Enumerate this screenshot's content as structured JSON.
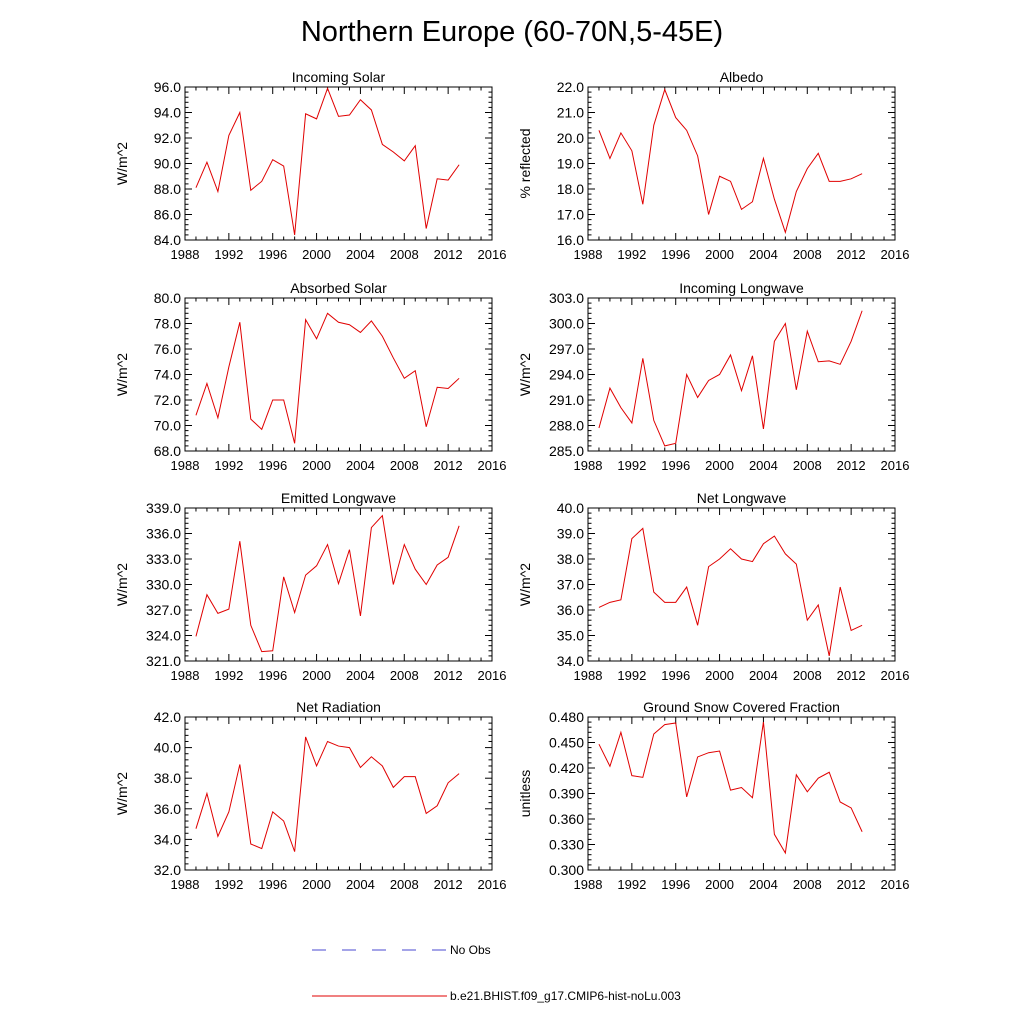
{
  "figure": {
    "title": "Northern Europe (60-70N,5-45E)",
    "x_ticks": [
      "1988",
      "1992",
      "1996",
      "2000",
      "2004",
      "2008",
      "2012",
      "2016"
    ],
    "line_color": "#e00000",
    "obs_color": "#4a4ad0"
  },
  "legend": {
    "obs_label": "No Obs",
    "model_label": "b.e21.BHIST.f09_g17.CMIP6-hist-noLu.003"
  },
  "chart_data": [
    {
      "type": "line",
      "title": "Incoming Solar",
      "ylabel": "W/m^2",
      "xlim": [
        1988,
        2016
      ],
      "ylim": [
        84.0,
        96.0
      ],
      "yticks": [
        "84.0",
        "86.0",
        "88.0",
        "90.0",
        "92.0",
        "94.0",
        "96.0"
      ],
      "x": [
        1989,
        1990,
        1991,
        1992,
        1993,
        1994,
        1995,
        1996,
        1997,
        1998,
        1999,
        2000,
        2001,
        2002,
        2003,
        2004,
        2005,
        2006,
        2007,
        2008,
        2009,
        2010,
        2011,
        2012,
        2013
      ],
      "series": [
        {
          "name": "b.e21.BHIST.f09_g17.CMIP6-hist-noLu.003",
          "values": [
            88.1,
            90.1,
            87.8,
            92.2,
            94.0,
            87.9,
            88.6,
            90.3,
            89.8,
            84.4,
            93.9,
            93.5,
            95.9,
            93.7,
            93.8,
            95.0,
            94.2,
            91.5,
            90.9,
            90.2,
            91.4,
            84.9,
            88.8,
            88.7,
            89.9
          ]
        }
      ]
    },
    {
      "type": "line",
      "title": "Albedo",
      "ylabel": "% reflected",
      "xlim": [
        1988,
        2016
      ],
      "ylim": [
        16.0,
        22.0
      ],
      "yticks": [
        "16.0",
        "17.0",
        "18.0",
        "19.0",
        "20.0",
        "21.0",
        "22.0"
      ],
      "x": [
        1989,
        1990,
        1991,
        1992,
        1993,
        1994,
        1995,
        1996,
        1997,
        1998,
        1999,
        2000,
        2001,
        2002,
        2003,
        2004,
        2005,
        2006,
        2007,
        2008,
        2009,
        2010,
        2011,
        2012,
        2013
      ],
      "series": [
        {
          "name": "b.e21.BHIST.f09_g17.CMIP6-hist-noLu.003",
          "values": [
            20.3,
            19.2,
            20.2,
            19.5,
            17.4,
            20.5,
            21.9,
            20.8,
            20.3,
            19.3,
            17.0,
            18.5,
            18.3,
            17.2,
            17.5,
            19.2,
            17.6,
            16.3,
            17.9,
            18.8,
            19.4,
            18.3,
            18.3,
            18.4,
            18.6
          ]
        }
      ]
    },
    {
      "type": "line",
      "title": "Absorbed Solar",
      "ylabel": "W/m^2",
      "xlim": [
        1988,
        2016
      ],
      "ylim": [
        68.0,
        80.0
      ],
      "yticks": [
        "68.0",
        "70.0",
        "72.0",
        "74.0",
        "76.0",
        "78.0",
        "80.0"
      ],
      "x": [
        1989,
        1990,
        1991,
        1992,
        1993,
        1994,
        1995,
        1996,
        1997,
        1998,
        1999,
        2000,
        2001,
        2002,
        2003,
        2004,
        2005,
        2006,
        2007,
        2008,
        2009,
        2010,
        2011,
        2012,
        2013
      ],
      "series": [
        {
          "name": "b.e21.BHIST.f09_g17.CMIP6-hist-noLu.003",
          "values": [
            70.8,
            73.3,
            70.6,
            74.6,
            78.1,
            70.5,
            69.7,
            72.0,
            72.0,
            68.6,
            78.3,
            76.8,
            78.8,
            78.1,
            77.9,
            77.3,
            78.2,
            77.0,
            75.3,
            73.7,
            74.3,
            69.9,
            73.0,
            72.9,
            73.7
          ]
        }
      ]
    },
    {
      "type": "line",
      "title": "Incoming Longwave",
      "ylabel": "W/m^2",
      "xlim": [
        1988,
        2016
      ],
      "ylim": [
        285.0,
        303.0
      ],
      "yticks": [
        "285.0",
        "288.0",
        "291.0",
        "294.0",
        "297.0",
        "300.0",
        "303.0"
      ],
      "x": [
        1989,
        1990,
        1991,
        1992,
        1993,
        1994,
        1995,
        1996,
        1997,
        1998,
        1999,
        2000,
        2001,
        2002,
        2003,
        2004,
        2005,
        2006,
        2007,
        2008,
        2009,
        2010,
        2011,
        2012,
        2013
      ],
      "series": [
        {
          "name": "b.e21.BHIST.f09_g17.CMIP6-hist-noLu.003",
          "values": [
            287.7,
            292.4,
            290.1,
            288.3,
            295.9,
            288.6,
            285.6,
            285.9,
            294.0,
            291.3,
            293.3,
            294.0,
            296.3,
            292.1,
            296.2,
            287.6,
            297.9,
            300.0,
            292.2,
            299.1,
            295.5,
            295.6,
            295.2,
            297.9,
            301.5
          ]
        }
      ]
    },
    {
      "type": "line",
      "title": "Emitted Longwave",
      "ylabel": "W/m^2",
      "xlim": [
        1988,
        2016
      ],
      "ylim": [
        321.0,
        339.0
      ],
      "yticks": [
        "321.0",
        "324.0",
        "327.0",
        "330.0",
        "333.0",
        "336.0",
        "339.0"
      ],
      "x": [
        1989,
        1990,
        1991,
        1992,
        1993,
        1994,
        1995,
        1996,
        1997,
        1998,
        1999,
        2000,
        2001,
        2002,
        2003,
        2004,
        2005,
        2006,
        2007,
        2008,
        2009,
        2010,
        2011,
        2012,
        2013
      ],
      "series": [
        {
          "name": "b.e21.BHIST.f09_g17.CMIP6-hist-noLu.003",
          "values": [
            323.9,
            328.8,
            326.6,
            327.1,
            335.1,
            325.2,
            322.1,
            322.2,
            330.9,
            326.7,
            331.1,
            332.2,
            334.7,
            330.1,
            334.1,
            326.3,
            336.7,
            338.1,
            330.0,
            334.7,
            331.8,
            330.0,
            332.3,
            333.2,
            336.9
          ]
        }
      ]
    },
    {
      "type": "line",
      "title": "Net Longwave",
      "ylabel": "W/m^2",
      "xlim": [
        1988,
        2016
      ],
      "ylim": [
        34.0,
        40.0
      ],
      "yticks": [
        "34.0",
        "35.0",
        "36.0",
        "37.0",
        "38.0",
        "39.0",
        "40.0"
      ],
      "x": [
        1989,
        1990,
        1991,
        1992,
        1993,
        1994,
        1995,
        1996,
        1997,
        1998,
        1999,
        2000,
        2001,
        2002,
        2003,
        2004,
        2005,
        2006,
        2007,
        2008,
        2009,
        2010,
        2011,
        2012,
        2013
      ],
      "series": [
        {
          "name": "b.e21.BHIST.f09_g17.CMIP6-hist-noLu.003",
          "values": [
            36.1,
            36.3,
            36.4,
            38.8,
            39.2,
            36.7,
            36.3,
            36.3,
            36.9,
            35.4,
            37.7,
            38.0,
            38.4,
            38.0,
            37.9,
            38.6,
            38.9,
            38.2,
            37.8,
            35.6,
            36.2,
            34.2,
            36.9,
            35.2,
            35.4
          ]
        }
      ]
    },
    {
      "type": "line",
      "title": "Net Radiation",
      "ylabel": "W/m^2",
      "xlim": [
        1988,
        2016
      ],
      "ylim": [
        32.0,
        42.0
      ],
      "yticks": [
        "32.0",
        "34.0",
        "36.0",
        "38.0",
        "40.0",
        "42.0"
      ],
      "x": [
        1989,
        1990,
        1991,
        1992,
        1993,
        1994,
        1995,
        1996,
        1997,
        1998,
        1999,
        2000,
        2001,
        2002,
        2003,
        2004,
        2005,
        2006,
        2007,
        2008,
        2009,
        2010,
        2011,
        2012,
        2013
      ],
      "series": [
        {
          "name": "b.e21.BHIST.f09_g17.CMIP6-hist-noLu.003",
          "values": [
            34.7,
            37.0,
            34.2,
            35.8,
            38.9,
            33.7,
            33.4,
            35.8,
            35.2,
            33.2,
            40.7,
            38.8,
            40.4,
            40.1,
            40.0,
            38.7,
            39.4,
            38.8,
            37.4,
            38.1,
            38.1,
            35.7,
            36.2,
            37.7,
            38.3
          ]
        }
      ]
    },
    {
      "type": "line",
      "title": "Ground Snow Covered Fraction",
      "ylabel": "unitless",
      "xlim": [
        1988,
        2016
      ],
      "ylim": [
        0.3,
        0.48
      ],
      "yticks": [
        "0.300",
        "0.330",
        "0.360",
        "0.390",
        "0.420",
        "0.450",
        "0.480"
      ],
      "x": [
        1989,
        1990,
        1991,
        1992,
        1993,
        1994,
        1995,
        1996,
        1997,
        1998,
        1999,
        2000,
        2001,
        2002,
        2003,
        2004,
        2005,
        2006,
        2007,
        2008,
        2009,
        2010,
        2011,
        2012,
        2013
      ],
      "series": [
        {
          "name": "b.e21.BHIST.f09_g17.CMIP6-hist-noLu.003",
          "values": [
            0.448,
            0.422,
            0.462,
            0.411,
            0.409,
            0.46,
            0.471,
            0.473,
            0.386,
            0.433,
            0.438,
            0.44,
            0.394,
            0.397,
            0.385,
            0.474,
            0.342,
            0.32,
            0.412,
            0.392,
            0.408,
            0.415,
            0.38,
            0.373,
            0.345
          ]
        }
      ]
    }
  ]
}
